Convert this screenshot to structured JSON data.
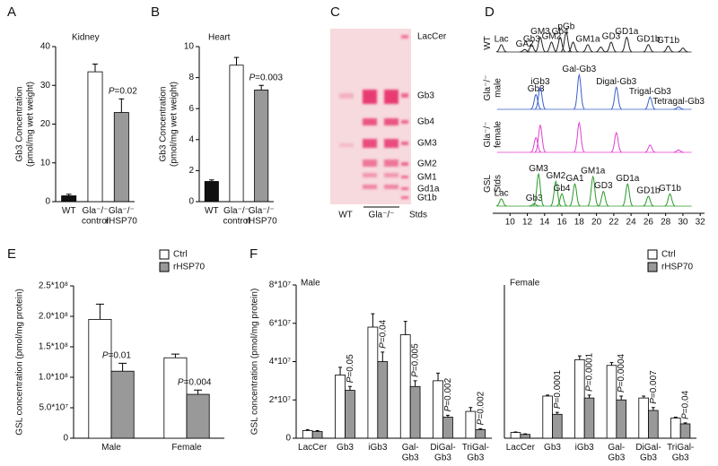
{
  "chart_data": [
    {
      "type": "bar",
      "panel": "A",
      "title": "Kidney",
      "ylabel": [
        "Gb3 Concentration",
        "(pmol/mg wet weight)"
      ],
      "categories": [
        "WT",
        "Gla⁻/⁻ control",
        "Gla⁻/⁻ rHSP70"
      ],
      "values": [
        1.5,
        33.5,
        23
      ],
      "errors": [
        0.4,
        2,
        3.5
      ],
      "colors": [
        "#111111",
        "#ffffff",
        "#999999"
      ],
      "annotations": [
        null,
        null,
        "P=0.02"
      ],
      "ylim": [
        0,
        40
      ],
      "yticks": [
        0,
        10,
        20,
        30,
        40
      ]
    },
    {
      "type": "bar",
      "panel": "B",
      "title": "Heart",
      "ylabel": [
        "Gb3 Concentration",
        "(pmol/mg wet weight)"
      ],
      "categories": [
        "WT",
        "Gla⁻/⁻ control",
        "Gla⁻/⁻ rHSP70"
      ],
      "values": [
        1.3,
        8.8,
        7.2
      ],
      "errors": [
        0.1,
        0.5,
        0.3
      ],
      "colors": [
        "#111111",
        "#ffffff",
        "#999999"
      ],
      "annotations": [
        null,
        null,
        "P=0.003"
      ],
      "ylim": [
        0,
        10
      ],
      "yticks": [
        0,
        2,
        4,
        6,
        8,
        10
      ]
    },
    {
      "type": "tlc",
      "panel": "C",
      "band_labels": [
        "LacCer",
        "Gb3",
        "Gb4",
        "GM3",
        "GM2",
        "GM1",
        "Gd1a",
        "Gt1b"
      ],
      "lane_labels": [
        "WT",
        "Gla⁻/⁻",
        "Stds"
      ]
    },
    {
      "type": "chromatogram",
      "panel": "D",
      "xlim": [
        8,
        32.5
      ],
      "xticks": [
        10,
        12,
        14,
        16,
        18,
        20,
        22,
        24,
        26,
        28,
        30,
        32
      ],
      "series": [
        {
          "name": "WT",
          "color": "#222222",
          "x": [
            9,
            11.7,
            12.5,
            13.5,
            14.8,
            15.8,
            16.5,
            17.3,
            19,
            20.5,
            21.7,
            23.5,
            26,
            28.3,
            30
          ],
          "values": [
            15,
            5,
            15,
            30,
            20,
            30,
            40,
            20,
            15,
            10,
            20,
            30,
            15,
            12,
            8
          ],
          "labels": [
            "Lac",
            "GA2",
            "Gb3",
            "GM3",
            "GM2",
            "Gb4",
            "pGb",
            null,
            "GM1a",
            null,
            "GD3",
            "GD1a",
            "GD1b",
            "GT1b",
            null
          ]
        },
        {
          "name": "Gla⁻/⁻ male",
          "color": "#3a5fcd",
          "x": [
            13,
            13.5,
            18,
            22.3,
            26.2,
            29.5
          ],
          "values": [
            30,
            45,
            70,
            45,
            25,
            5
          ],
          "labels": [
            "Gb3",
            "iGb3",
            "Gal-Gb3",
            "Digal-Gb3",
            "Trigal-Gb3",
            "Tetragal-Gb3"
          ]
        },
        {
          "name": "Gla⁻/⁻ female",
          "color": "#e040d0",
          "x": [
            13,
            13.5,
            18,
            22.3,
            26.2,
            29.5
          ],
          "values": [
            30,
            55,
            60,
            40,
            15,
            5
          ],
          "labels": [
            null,
            null,
            null,
            null,
            null,
            null
          ]
        },
        {
          "name": "GSL Stds",
          "color": "#2a9a2a",
          "x": [
            9,
            12.8,
            13.3,
            15.3,
            16,
            17.5,
            19.6,
            20.8,
            23.6,
            26,
            28.5
          ],
          "values": [
            15,
            5,
            65,
            50,
            25,
            45,
            60,
            30,
            45,
            20,
            25
          ],
          "labels": [
            "Lac",
            "Gb3",
            "GM3",
            "GM2",
            "Gb4",
            "GA1",
            "GM1a",
            "GD3",
            "GD1a",
            "GD1b",
            "GT1b"
          ]
        }
      ]
    },
    {
      "type": "bar",
      "panel": "E",
      "ylabel": "GSL concentration (pmol/mg protein)",
      "categories": [
        "Male",
        "Female"
      ],
      "series": [
        {
          "name": "Ctrl",
          "color": "#ffffff",
          "values": [
            195000000,
            132000000
          ],
          "errors": [
            25000000,
            6000000
          ]
        },
        {
          "name": "rHSP70",
          "color": "#999999",
          "values": [
            110000000,
            72000000
          ],
          "errors": [
            13000000,
            7000000
          ]
        }
      ],
      "annotations": [
        "P=0.01",
        "P=0.004"
      ],
      "ylim": [
        0,
        250000000
      ],
      "yticks": [
        0,
        {
          "value": 50000000,
          "label": "5.0*10⁷"
        },
        {
          "value": 100000000,
          "label": "1.0*10⁸"
        },
        {
          "value": 150000000,
          "label": "1.5*10⁸"
        },
        {
          "value": 200000000,
          "label": "2.0*10⁸"
        },
        {
          "value": 250000000,
          "label": "2.5*10⁸"
        }
      ]
    },
    {
      "type": "bar",
      "panel": "F",
      "title": "Male",
      "ylabel": "GSL concentration (pmol/mg protein)",
      "categories": [
        "LacCer",
        "Gb3",
        "iGb3",
        "Gal-Gb3",
        "DiGal-Gb3",
        "TriGal-Gb3"
      ],
      "series": [
        {
          "color": "#ffffff",
          "values": [
            4000000,
            33000000,
            58000000,
            54000000,
            30000000,
            14000000
          ],
          "errors": [
            500000,
            4000000,
            7000000,
            7000000,
            4000000,
            2000000
          ]
        },
        {
          "color": "#999999",
          "values": [
            3500000,
            25000000,
            40000000,
            27000000,
            11000000,
            4500000
          ],
          "errors": [
            500000,
            2000000,
            5000000,
            3000000,
            1000000,
            500000
          ]
        }
      ],
      "annotations": [
        null,
        "P=0.05",
        "P=0.04",
        "P=0.005",
        "P=0.002",
        "P=0.002"
      ],
      "ylim": [
        0,
        80000000
      ],
      "yticks": [
        0,
        {
          "value": 20000000,
          "label": "2*10⁷"
        },
        {
          "value": 40000000,
          "label": "4*10⁷"
        },
        {
          "value": 60000000,
          "label": "6*10⁷"
        },
        {
          "value": 80000000,
          "label": "8*10⁷"
        }
      ]
    },
    {
      "type": "bar",
      "title": "Female",
      "categories": [
        "LacCer",
        "Gb3",
        "iGb3",
        "Gal-Gb3",
        "DiGal-Gb3",
        "TriGal-Gb3"
      ],
      "series": [
        {
          "name": "Ctrl",
          "color": "#ffffff",
          "values": [
            3000000,
            22000000,
            41000000,
            38000000,
            21000000,
            10500000
          ],
          "errors": [
            300000,
            500000,
            2000000,
            1500000,
            1000000,
            500000
          ]
        },
        {
          "name": "rHSP70",
          "color": "#999999",
          "values": [
            2000000,
            12500000,
            21000000,
            20000000,
            14500000,
            7500000
          ],
          "errors": [
            300000,
            1000000,
            1500000,
            2000000,
            1500000,
            500000
          ]
        }
      ],
      "annotations": [
        null,
        "P=0.0001",
        "P=0.0001",
        "P=0.0004",
        "P=0.007",
        "P=0.04"
      ],
      "ylim": [
        0,
        80000000
      ]
    }
  ]
}
